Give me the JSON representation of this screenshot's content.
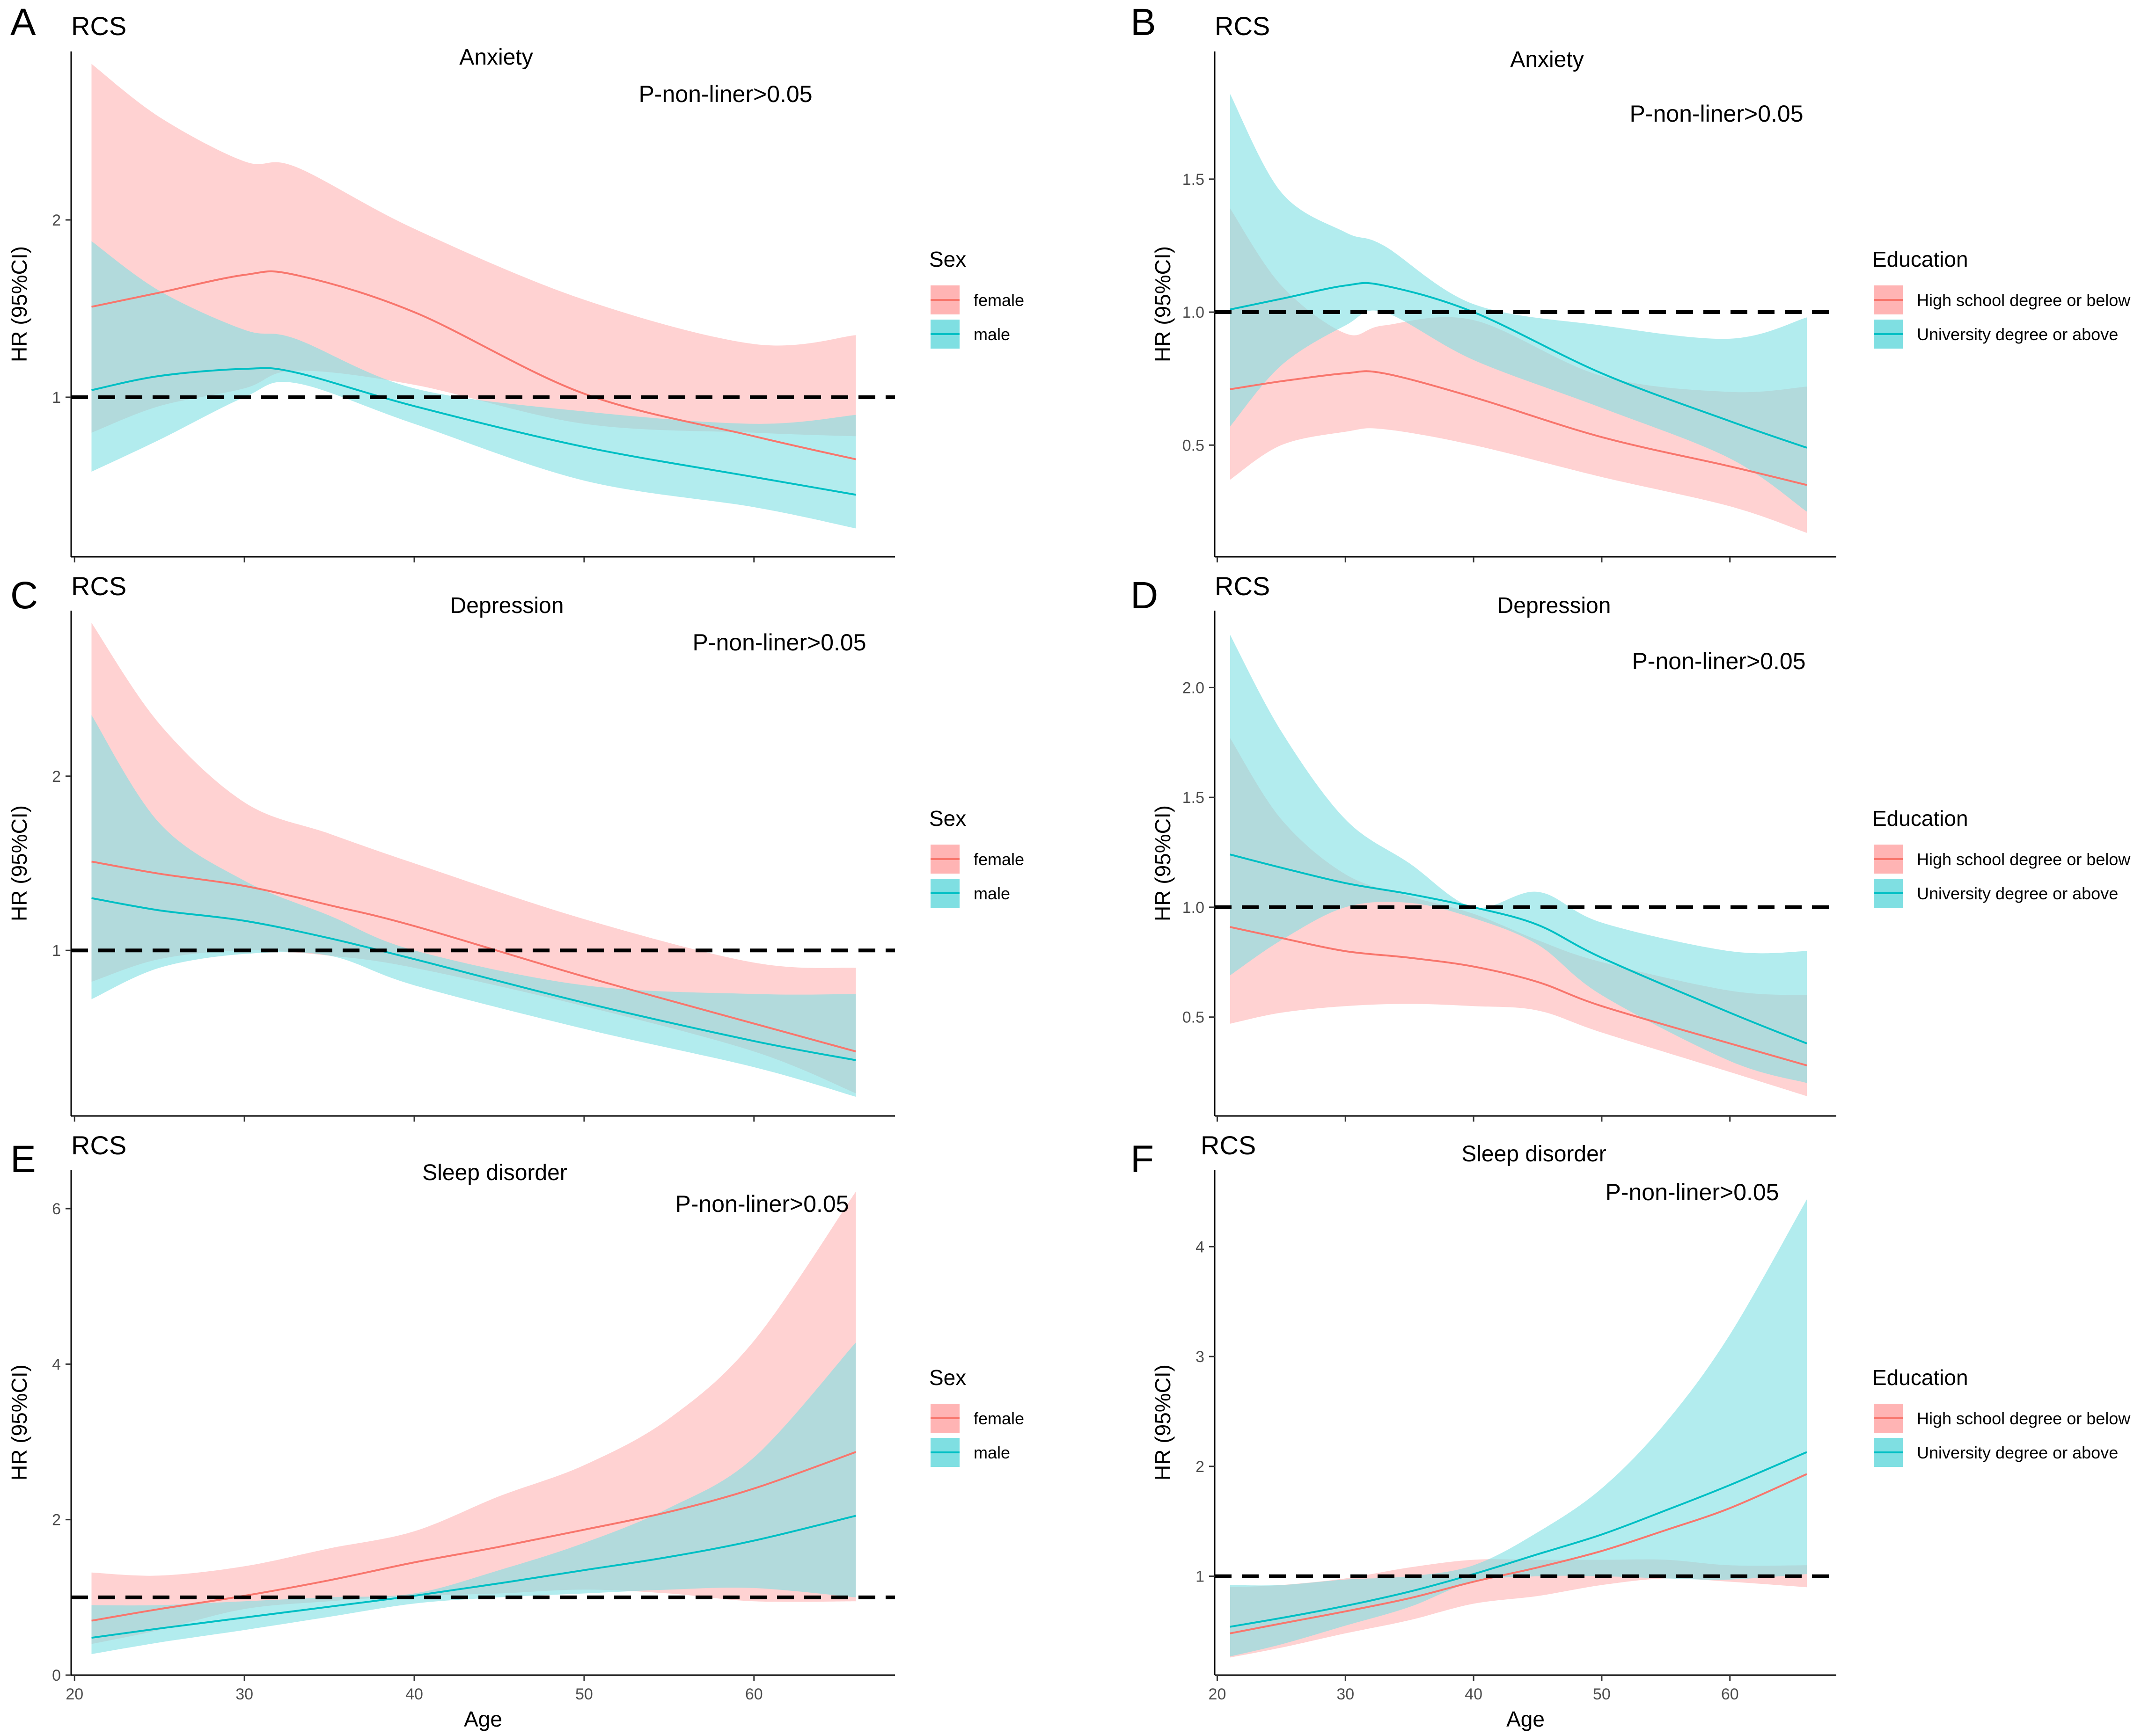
{
  "figure": {
    "axis_x_label": "Age",
    "axis_y_label": "HR (95%CI)"
  },
  "colors": {
    "red_line": "#F8766D",
    "red_band": "#FFB4B4",
    "teal_line": "#00BFC4",
    "teal_band": "#7FDFE2",
    "overlap_line": "#B08A87"
  },
  "chart_data": [
    {
      "panel": "A",
      "label": "RCS",
      "title": "Anxiety",
      "annotation": "P-non-liner>0.05",
      "type": "line",
      "xlabel": "Age",
      "ylabel": "HR (95%CI)",
      "show_xlabel": false,
      "xlim": [
        19.8,
        68.3
      ],
      "ylim": [
        0.1,
        2.95
      ],
      "xticks": [
        20,
        30,
        40,
        50,
        60
      ],
      "show_xtick_labels": false,
      "yticks": [
        1,
        2
      ],
      "ytick_labels": [
        "1",
        "2"
      ],
      "reference_line": 1,
      "legend": {
        "title": "Sex",
        "position": "right",
        "items": [
          "female",
          "male"
        ]
      },
      "series": [
        {
          "name": "female",
          "color": "red",
          "x": [
            21,
            25,
            30,
            33,
            40,
            50,
            60,
            66
          ],
          "y": [
            1.51,
            1.59,
            1.69,
            1.69,
            1.48,
            1.02,
            0.78,
            0.65
          ],
          "lower": [
            0.8,
            0.95,
            1.05,
            1.15,
            1.07,
            0.85,
            0.8,
            0.78
          ],
          "upper": [
            2.88,
            2.58,
            2.33,
            2.3,
            1.95,
            1.55,
            1.3,
            1.35
          ]
        },
        {
          "name": "male",
          "color": "teal",
          "x": [
            21,
            25,
            30,
            33,
            40,
            50,
            60,
            66
          ],
          "y": [
            1.04,
            1.12,
            1.16,
            1.14,
            0.95,
            0.72,
            0.55,
            0.45
          ],
          "lower": [
            0.58,
            0.76,
            1.0,
            1.08,
            0.85,
            0.53,
            0.38,
            0.26
          ],
          "upper": [
            1.88,
            1.6,
            1.38,
            1.33,
            1.05,
            0.92,
            0.85,
            0.9
          ]
        }
      ]
    },
    {
      "panel": "B",
      "label": "RCS",
      "title": "Anxiety",
      "annotation": "P-non-liner>0.05",
      "type": "line",
      "xlabel": "Age",
      "ylabel": "HR (95%CI)",
      "show_xlabel": false,
      "xlim": [
        19.8,
        68.3
      ],
      "ylim": [
        0.08,
        1.98
      ],
      "xticks": [
        20,
        30,
        40,
        50,
        60
      ],
      "show_xtick_labels": false,
      "yticks": [
        0.5,
        1.0,
        1.5
      ],
      "ytick_labels": [
        "0.5",
        "1.0",
        "1.5"
      ],
      "reference_line": 1.0,
      "legend": {
        "title": "Education",
        "position": "right",
        "items": [
          "High school degree or below",
          "University degree or above"
        ]
      },
      "series": [
        {
          "name": "High school degree or below",
          "color": "red",
          "x": [
            21,
            25,
            30,
            33,
            40,
            50,
            60,
            66
          ],
          "y": [
            0.71,
            0.74,
            0.77,
            0.77,
            0.68,
            0.53,
            0.42,
            0.35
          ],
          "lower": [
            0.37,
            0.5,
            0.55,
            0.56,
            0.5,
            0.38,
            0.27,
            0.17
          ],
          "upper": [
            1.39,
            1.1,
            0.92,
            0.95,
            0.97,
            0.76,
            0.7,
            0.72
          ]
        },
        {
          "name": "University degree or above",
          "color": "teal",
          "x": [
            21,
            25,
            30,
            33,
            40,
            50,
            60,
            66
          ],
          "y": [
            1.01,
            1.05,
            1.1,
            1.1,
            1.0,
            0.77,
            0.59,
            0.49
          ],
          "lower": [
            0.57,
            0.8,
            0.95,
            1.0,
            0.82,
            0.64,
            0.45,
            0.25
          ],
          "upper": [
            1.82,
            1.45,
            1.3,
            1.25,
            1.03,
            0.95,
            0.9,
            0.98
          ]
        }
      ]
    },
    {
      "panel": "C",
      "label": "RCS",
      "title": "Depression",
      "annotation": "P-non-liner>0.05",
      "type": "line",
      "xlabel": "Age",
      "ylabel": "HR (95%CI)",
      "show_xlabel": false,
      "xlim": [
        19.8,
        68.3
      ],
      "ylim": [
        0.05,
        2.95
      ],
      "xticks": [
        20,
        30,
        40,
        50,
        60
      ],
      "show_xtick_labels": false,
      "yticks": [
        1,
        2
      ],
      "ytick_labels": [
        "1",
        "2"
      ],
      "reference_line": 1,
      "legend": {
        "title": "Sex",
        "position": "right",
        "items": [
          "female",
          "male"
        ]
      },
      "series": [
        {
          "name": "female",
          "color": "red",
          "x": [
            21,
            25,
            30,
            35,
            40,
            50,
            60,
            66
          ],
          "y": [
            1.51,
            1.44,
            1.37,
            1.26,
            1.14,
            0.85,
            0.58,
            0.42
          ],
          "lower": [
            0.82,
            0.95,
            1.0,
            0.97,
            0.9,
            0.68,
            0.42,
            0.18
          ],
          "upper": [
            2.88,
            2.3,
            1.85,
            1.67,
            1.5,
            1.18,
            0.93,
            0.9
          ]
        },
        {
          "name": "male",
          "color": "teal",
          "x": [
            21,
            25,
            30,
            35,
            40,
            50,
            60,
            66
          ],
          "y": [
            1.3,
            1.23,
            1.17,
            1.07,
            0.95,
            0.7,
            0.48,
            0.37
          ],
          "lower": [
            0.72,
            0.9,
            0.98,
            0.97,
            0.8,
            0.55,
            0.33,
            0.16
          ],
          "upper": [
            2.35,
            1.73,
            1.4,
            1.2,
            1.0,
            0.8,
            0.75,
            0.75
          ]
        }
      ]
    },
    {
      "panel": "D",
      "label": "RCS",
      "title": "Depression",
      "annotation": "P-non-liner>0.05",
      "type": "line",
      "xlabel": "Age",
      "ylabel": "HR (95%CI)",
      "show_xlabel": false,
      "xlim": [
        19.8,
        68.3
      ],
      "ylim": [
        0.05,
        2.35
      ],
      "xticks": [
        20,
        30,
        40,
        50,
        60
      ],
      "show_xtick_labels": false,
      "yticks": [
        0.5,
        1.0,
        1.5,
        2.0
      ],
      "ytick_labels": [
        "0.5",
        "1.0",
        "1.5",
        "2.0"
      ],
      "reference_line": 1.0,
      "legend": {
        "title": "Education",
        "position": "right",
        "items": [
          "High school degree or below",
          "University degree or above"
        ]
      },
      "series": [
        {
          "name": "High school degree or below",
          "color": "red",
          "x": [
            21,
            25,
            30,
            35,
            40,
            45,
            50,
            60,
            66
          ],
          "y": [
            0.91,
            0.86,
            0.8,
            0.77,
            0.73,
            0.66,
            0.55,
            0.38,
            0.28
          ],
          "lower": [
            0.47,
            0.52,
            0.55,
            0.56,
            0.55,
            0.53,
            0.43,
            0.25,
            0.14
          ],
          "upper": [
            1.77,
            1.4,
            1.15,
            1.05,
            0.97,
            0.85,
            0.75,
            0.62,
            0.6
          ]
        },
        {
          "name": "University degree or above",
          "color": "teal",
          "x": [
            21,
            25,
            30,
            35,
            40,
            45,
            50,
            60,
            66
          ],
          "y": [
            1.24,
            1.18,
            1.11,
            1.06,
            1.0,
            0.92,
            0.77,
            0.52,
            0.38
          ],
          "lower": [
            0.69,
            0.85,
            1.0,
            1.02,
            0.95,
            0.83,
            0.6,
            0.3,
            0.2
          ],
          "upper": [
            2.24,
            1.8,
            1.4,
            1.2,
            1.0,
            1.07,
            0.93,
            0.8,
            0.8
          ]
        }
      ]
    },
    {
      "panel": "E",
      "label": "RCS",
      "title": "Sleep disorder",
      "annotation": "P-non-liner>0.05",
      "type": "line",
      "xlabel": "Age",
      "ylabel": "HR (95%CI)",
      "show_xlabel": true,
      "xlim": [
        19.8,
        68.3
      ],
      "ylim": [
        0,
        6.5
      ],
      "xticks": [
        20,
        30,
        40,
        50,
        60
      ],
      "show_xtick_labels": true,
      "xtick_labels": [
        "20",
        "30",
        "40",
        "50",
        "60"
      ],
      "yticks": [
        0,
        2,
        4,
        6
      ],
      "ytick_labels": [
        "0",
        "2",
        "4",
        "6"
      ],
      "reference_line": 1,
      "legend": {
        "title": "Sex",
        "position": "right",
        "items": [
          "female",
          "male"
        ]
      },
      "series": [
        {
          "name": "female",
          "color": "red",
          "x": [
            21,
            25,
            30,
            35,
            40,
            45,
            50,
            55,
            60,
            66
          ],
          "y": [
            0.7,
            0.85,
            1.02,
            1.22,
            1.45,
            1.65,
            1.87,
            2.1,
            2.4,
            2.87
          ],
          "lower": [
            0.4,
            0.58,
            0.85,
            0.95,
            1.02,
            1.05,
            1.1,
            1.05,
            0.95,
            0.95
          ],
          "upper": [
            1.32,
            1.28,
            1.4,
            1.63,
            1.85,
            2.3,
            2.7,
            3.3,
            4.3,
            6.22
          ]
        },
        {
          "name": "male",
          "color": "teal",
          "x": [
            21,
            25,
            30,
            35,
            40,
            45,
            50,
            55,
            60,
            66
          ],
          "y": [
            0.48,
            0.6,
            0.74,
            0.88,
            1.02,
            1.18,
            1.35,
            1.52,
            1.73,
            2.05
          ],
          "lower": [
            0.27,
            0.42,
            0.58,
            0.75,
            0.92,
            1.0,
            1.05,
            1.1,
            1.12,
            1.0
          ],
          "upper": [
            0.9,
            0.9,
            0.95,
            1.0,
            1.05,
            1.35,
            1.7,
            2.15,
            2.8,
            4.28
          ]
        }
      ]
    },
    {
      "panel": "F",
      "label": "RCS",
      "title": "Sleep disorder",
      "annotation": "P-non-liner>0.05",
      "type": "line",
      "xlabel": "Age",
      "ylabel": "HR (95%CI)",
      "show_xlabel": true,
      "xlim": [
        19.8,
        68.3
      ],
      "ylim": [
        0.1,
        4.7
      ],
      "xticks": [
        20,
        30,
        40,
        50,
        60
      ],
      "show_xtick_labels": true,
      "xtick_labels": [
        "20",
        "30",
        "40",
        "50",
        "60"
      ],
      "yticks": [
        1,
        2,
        3,
        4
      ],
      "ytick_labels": [
        "1",
        "2",
        "3",
        "4"
      ],
      "reference_line": 1,
      "legend": {
        "title": "Education",
        "position": "right",
        "items": [
          "High school degree or below",
          "University degree or above"
        ]
      },
      "series": [
        {
          "name": "High school degree or below",
          "color": "red",
          "x": [
            21,
            25,
            30,
            35,
            40,
            45,
            50,
            55,
            60,
            66
          ],
          "y": [
            0.48,
            0.57,
            0.68,
            0.8,
            0.95,
            1.08,
            1.23,
            1.42,
            1.62,
            1.93
          ],
          "lower": [
            0.26,
            0.35,
            0.48,
            0.6,
            0.75,
            0.82,
            0.92,
            0.98,
            0.95,
            0.9
          ],
          "upper": [
            0.9,
            0.92,
            0.98,
            1.08,
            1.15,
            1.15,
            1.15,
            1.15,
            1.1,
            1.1
          ]
        },
        {
          "name": "University degree or above",
          "color": "teal",
          "x": [
            21,
            25,
            30,
            35,
            40,
            45,
            50,
            55,
            60,
            66
          ],
          "y": [
            0.54,
            0.62,
            0.73,
            0.86,
            1.02,
            1.2,
            1.38,
            1.6,
            1.83,
            2.13
          ],
          "lower": [
            0.27,
            0.38,
            0.55,
            0.72,
            0.95,
            1.0,
            1.0,
            0.98,
            0.97,
            1.02
          ],
          "upper": [
            0.92,
            0.92,
            0.97,
            1.0,
            1.1,
            1.4,
            1.8,
            2.4,
            3.2,
            4.43
          ]
        }
      ]
    }
  ]
}
